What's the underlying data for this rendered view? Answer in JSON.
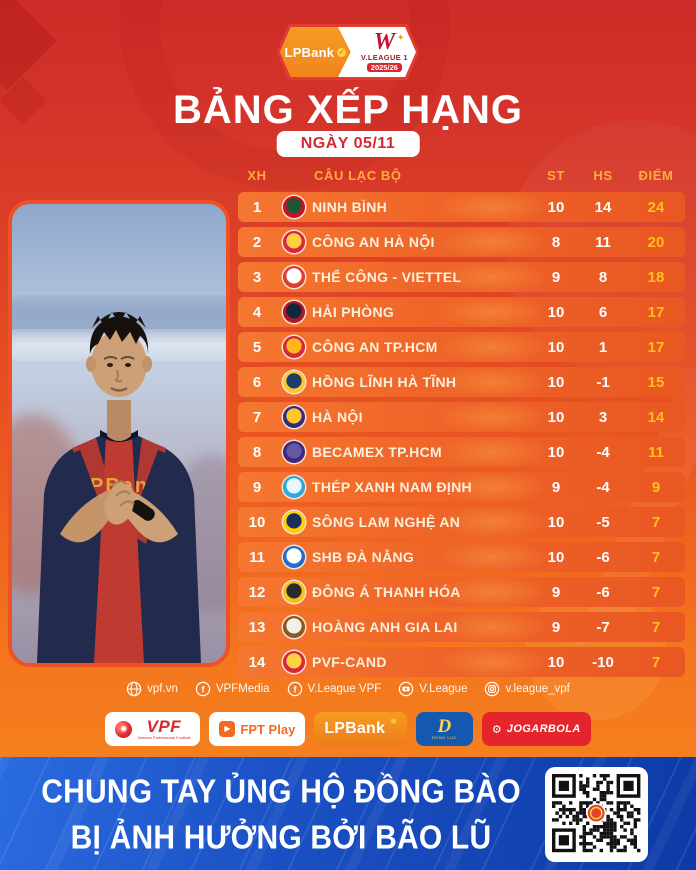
{
  "header": {
    "badge": {
      "sponsor": "LPBank",
      "logo_letter": "W",
      "league": "V.LEAGUE 1",
      "season": "2025/26"
    },
    "title": "BẢNG XẾP HẠNG",
    "date_label": "NGÀY 05/11"
  },
  "accent_colors": {
    "background_top": "#ce2b28",
    "background_bottom": "#f6891e",
    "points": "#ffc01e",
    "header_label": "#ffab3d",
    "banner_blue": "#1b51c4"
  },
  "table": {
    "columns": [
      "XH",
      "CÂU LẠC BỘ",
      "ST",
      "HS",
      "ĐIỂM"
    ],
    "rows": [
      {
        "rank": 1,
        "club": "NINH BÌNH",
        "st": 10,
        "hs": 14,
        "pts": 24,
        "colors": [
          "#c8102e",
          "#1e5631"
        ]
      },
      {
        "rank": 2,
        "club": "CÔNG AN HÀ NỘI",
        "st": 8,
        "hs": 11,
        "pts": 20,
        "colors": [
          "#d7263d",
          "#ffcf3f"
        ]
      },
      {
        "rank": 3,
        "club": "THỂ CÔNG - VIETTEL",
        "st": 9,
        "hs": 8,
        "pts": 18,
        "colors": [
          "#e03c31",
          "#ffffff"
        ]
      },
      {
        "rank": 4,
        "club": "HẢI PHÒNG",
        "st": 10,
        "hs": 6,
        "pts": 17,
        "colors": [
          "#a6192e",
          "#12263a"
        ]
      },
      {
        "rank": 5,
        "club": "CÔNG AN TP.HCM",
        "st": 10,
        "hs": 1,
        "pts": 17,
        "colors": [
          "#d7263d",
          "#ffb81c"
        ]
      },
      {
        "rank": 6,
        "club": "HỒNG LĨNH HÀ TĨNH",
        "st": 10,
        "hs": -1,
        "pts": 15,
        "colors": [
          "#ffc72c",
          "#1b3d6d"
        ]
      },
      {
        "rank": 7,
        "club": "HÀ NỘI",
        "st": 10,
        "hs": 3,
        "pts": 14,
        "colors": [
          "#2d2e83",
          "#ffc72c"
        ]
      },
      {
        "rank": 8,
        "club": "BECAMEX TP.HCM",
        "st": 10,
        "hs": -4,
        "pts": 11,
        "colors": [
          "#3b2a7d",
          "#6457a6"
        ]
      },
      {
        "rank": 9,
        "club": "THÉP XANH NAM ĐỊNH",
        "st": 9,
        "hs": -4,
        "pts": 9,
        "colors": [
          "#29abe2",
          "#e8f6fd"
        ]
      },
      {
        "rank": 10,
        "club": "SÔNG LAM NGHỆ AN",
        "st": 10,
        "hs": -5,
        "pts": 7,
        "colors": [
          "#ffd100",
          "#1a2f5a"
        ]
      },
      {
        "rank": 11,
        "club": "SHB ĐÀ NẴNG",
        "st": 10,
        "hs": -6,
        "pts": 7,
        "colors": [
          "#1d6fd1",
          "#ffffff"
        ]
      },
      {
        "rank": 12,
        "club": "ĐÔNG Á THANH HÓA",
        "st": 9,
        "hs": -6,
        "pts": 7,
        "colors": [
          "#f2c41a",
          "#2b2b2b"
        ]
      },
      {
        "rank": 13,
        "club": "HOÀNG ANH GIA LAI",
        "st": 9,
        "hs": -7,
        "pts": 7,
        "colors": [
          "#8a5a24",
          "#f5f0e6"
        ]
      },
      {
        "rank": 14,
        "club": "PVF-CAND",
        "st": 10,
        "hs": -10,
        "pts": 7,
        "colors": [
          "#d7263d",
          "#ffd23f"
        ]
      }
    ]
  },
  "chart_data": {
    "type": "table",
    "title": "BẢNG XẾP HẠNG – NGÀY 05/11 (LPBank V.League 1 2025/26)",
    "columns": [
      "XH",
      "CÂU LẠC BỘ",
      "ST",
      "HS",
      "ĐIỂM"
    ],
    "rows": [
      [
        1,
        "NINH BÌNH",
        10,
        14,
        24
      ],
      [
        2,
        "CÔNG AN HÀ NỘI",
        8,
        11,
        20
      ],
      [
        3,
        "THỂ CÔNG - VIETTEL",
        9,
        8,
        18
      ],
      [
        4,
        "HẢI PHÒNG",
        10,
        6,
        17
      ],
      [
        5,
        "CÔNG AN TP.HCM",
        10,
        1,
        17
      ],
      [
        6,
        "HỒNG LĨNH HÀ TĨNH",
        10,
        -1,
        15
      ],
      [
        7,
        "HÀ NỘI",
        10,
        3,
        14
      ],
      [
        8,
        "BECAMEX TP.HCM",
        10,
        -4,
        11
      ],
      [
        9,
        "THÉP XANH NAM ĐỊNH",
        9,
        -4,
        9
      ],
      [
        10,
        "SÔNG LAM NGHỆ AN",
        10,
        -5,
        7
      ],
      [
        11,
        "SHB ĐÀ NẴNG",
        10,
        -6,
        7
      ],
      [
        12,
        "ĐÔNG Á THANH HÓA",
        9,
        -6,
        7
      ],
      [
        13,
        "HOÀNG ANH GIA LAI",
        9,
        -7,
        7
      ],
      [
        14,
        "PVF-CAND",
        10,
        -10,
        7
      ]
    ]
  },
  "social": [
    {
      "icon": "globe",
      "label": "vpf.vn"
    },
    {
      "icon": "facebook",
      "label": "VPFMedia"
    },
    {
      "icon": "facebook",
      "label": "V.League VPF"
    },
    {
      "icon": "youtube",
      "label": "V.League"
    },
    {
      "icon": "instagram",
      "label": "v.league_vpf"
    }
  ],
  "sponsors": {
    "vpf": {
      "label": "VPF",
      "caption": "Vietnam Professional Football"
    },
    "fpt": {
      "label": "FPT Play"
    },
    "lpbank": {
      "label": "LPBank"
    },
    "dongluc": {
      "label": "D",
      "caption": "DONG LUC"
    },
    "jogarbola": {
      "label": "JOGARBOLA"
    }
  },
  "banner": {
    "line1": "CHUNG TAY ỦNG HỘ ĐỒNG BÀO",
    "line2": "BỊ ẢNH HƯỞNG BỞI BÃO LŨ"
  }
}
